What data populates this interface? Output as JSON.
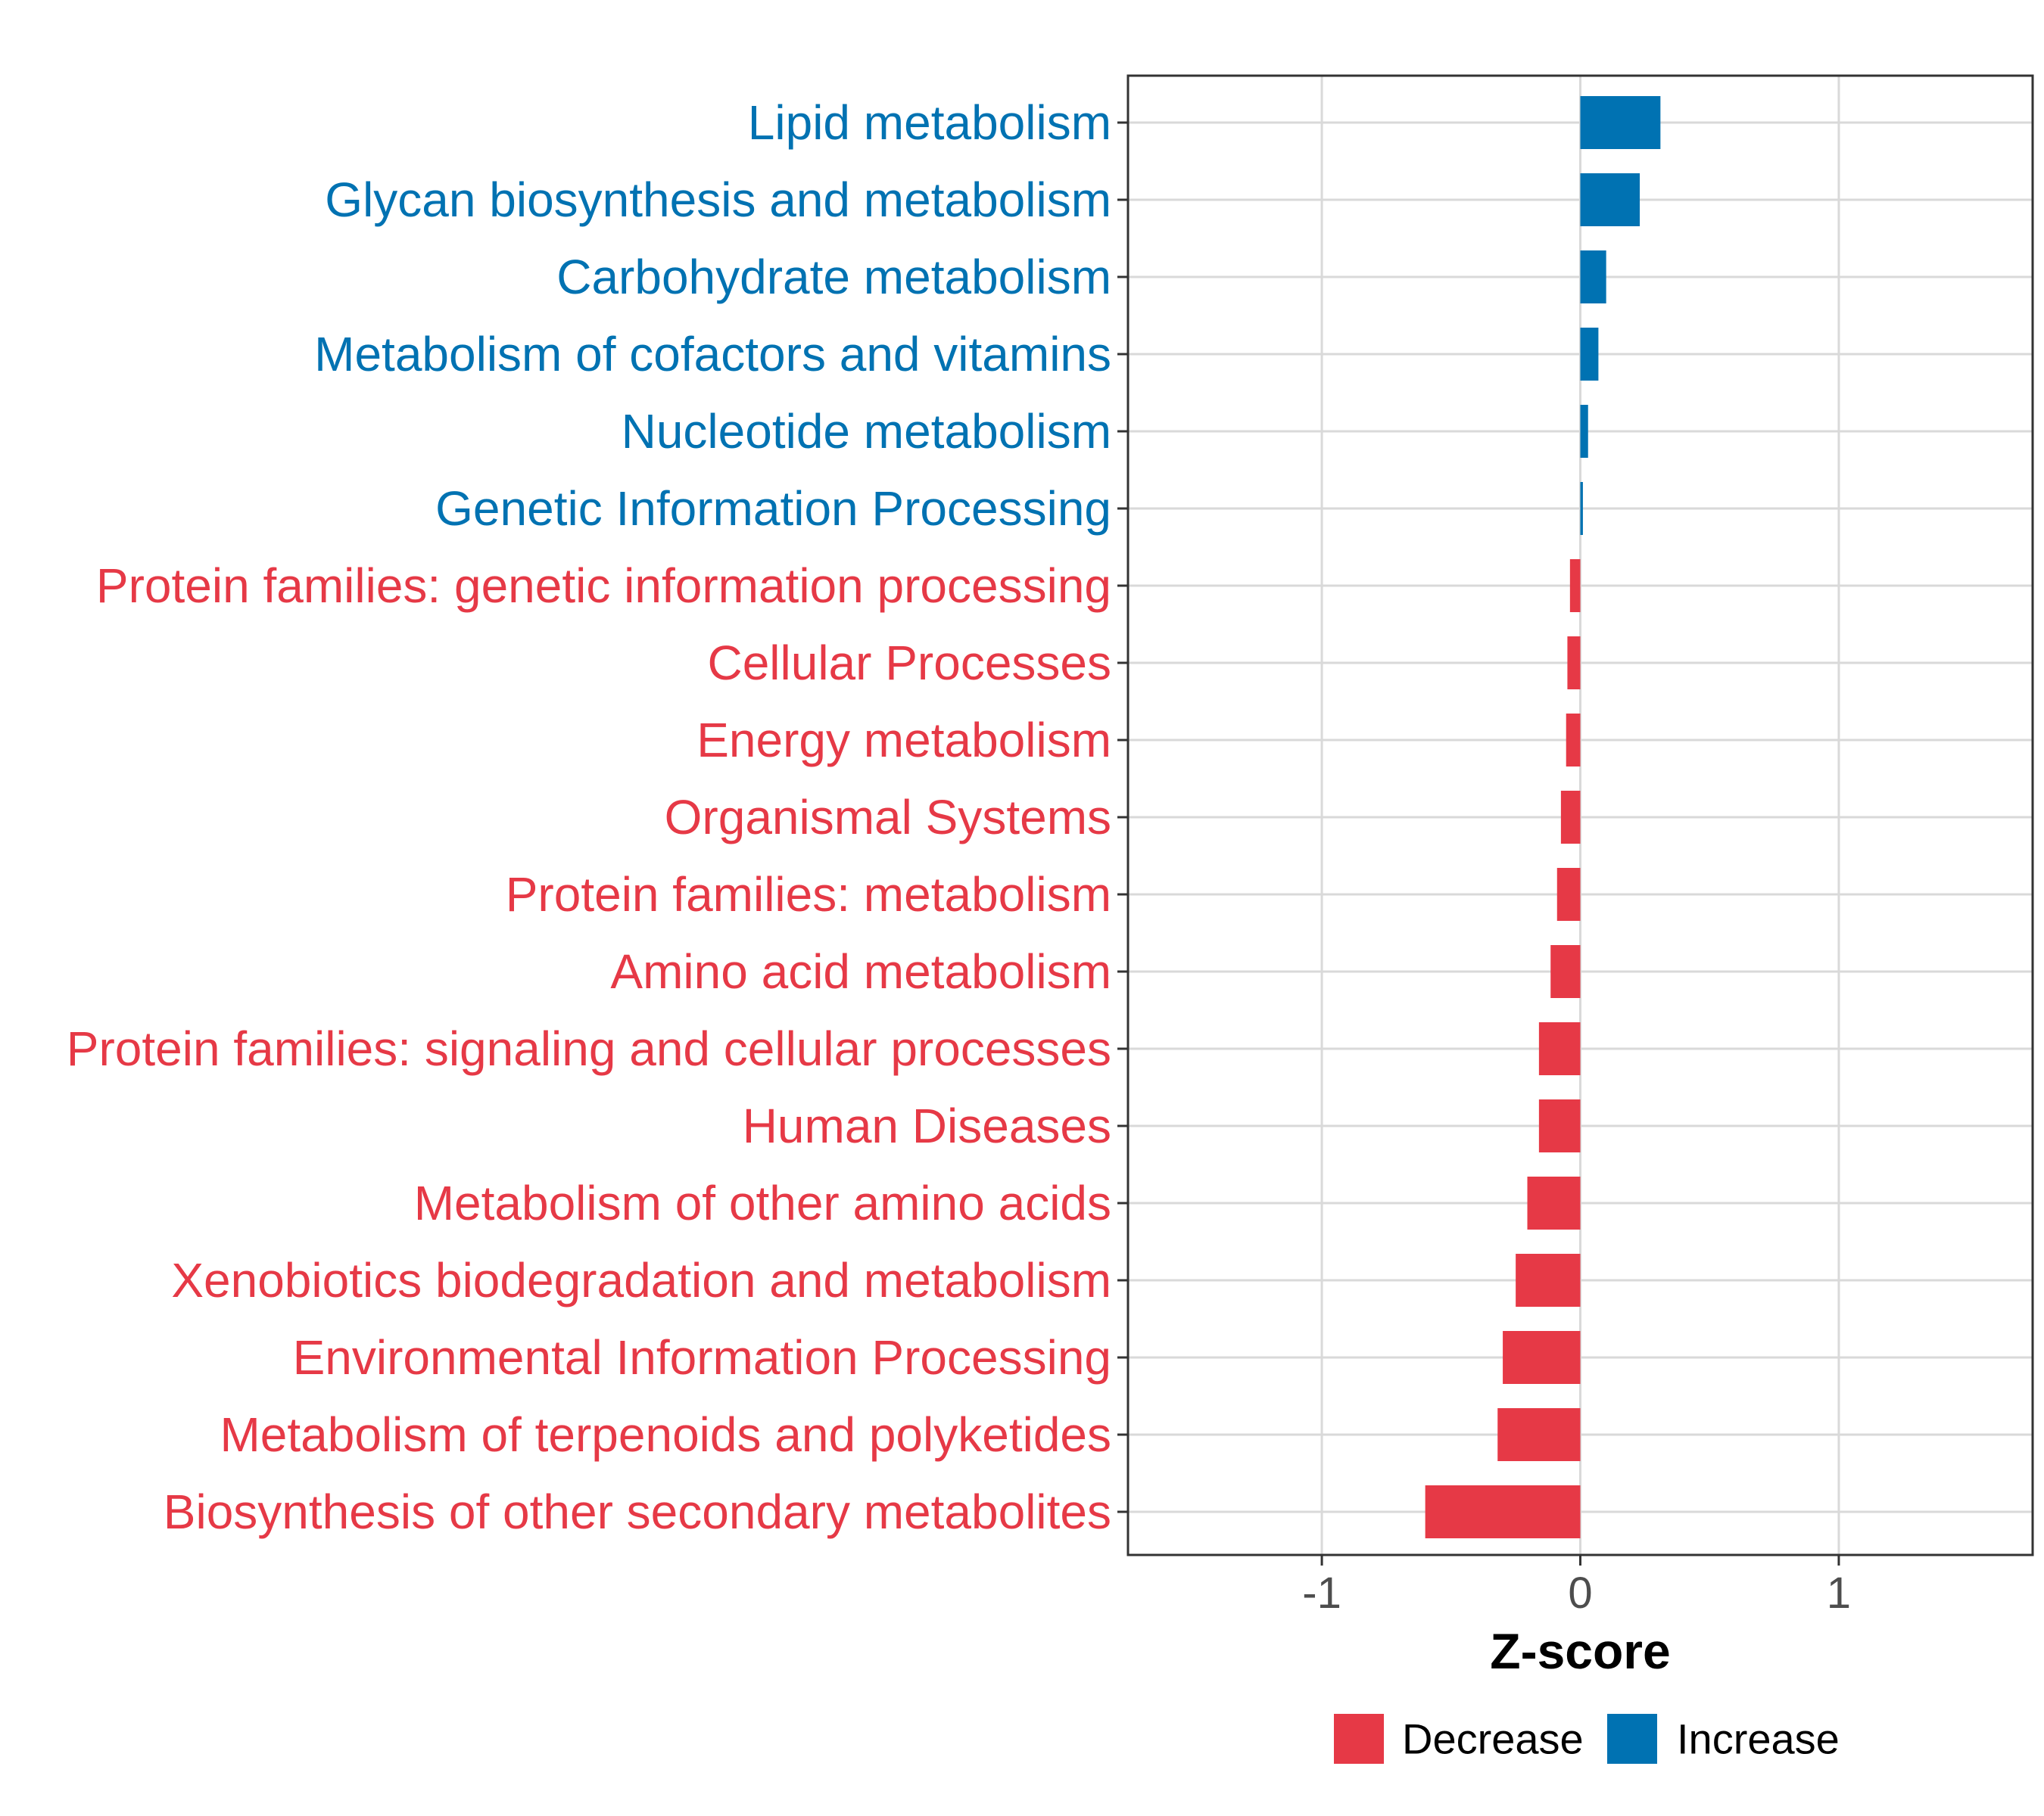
{
  "chart_data": {
    "type": "bar",
    "orientation": "horizontal",
    "title": "",
    "xlabel": "Z-score",
    "ylabel": "",
    "xlim": [
      -1.75,
      1.75
    ],
    "x_ticks": [
      -1,
      0,
      1
    ],
    "x_tick_labels": [
      "-1",
      "0",
      "1"
    ],
    "grid": true,
    "categories": [
      "Lipid metabolism",
      "Glycan biosynthesis and metabolism",
      "Carbohydrate metabolism",
      "Metabolism of cofactors and vitamins",
      "Nucleotide metabolism",
      "Genetic Information Processing",
      "Protein families: genetic information processing",
      "Cellular Processes",
      "Energy metabolism",
      "Organismal Systems",
      "Protein families: metabolism",
      "Amino acid metabolism",
      "Protein families: signaling and cellular processes",
      "Human Diseases",
      "Metabolism of other amino acids",
      "Xenobiotics biodegradation and metabolism",
      "Environmental Information Processing",
      "Metabolism of terpenoids and polyketides",
      "Biosynthesis of other secondary metabolites"
    ],
    "values": [
      0.31,
      0.23,
      0.1,
      0.07,
      0.03,
      0.01,
      -0.04,
      -0.05,
      -0.055,
      -0.075,
      -0.09,
      -0.115,
      -0.16,
      -0.16,
      -0.205,
      -0.25,
      -0.3,
      -0.32,
      -0.6
    ],
    "groups": [
      "Increase",
      "Increase",
      "Increase",
      "Increase",
      "Increase",
      "Increase",
      "Decrease",
      "Decrease",
      "Decrease",
      "Decrease",
      "Decrease",
      "Decrease",
      "Decrease",
      "Decrease",
      "Decrease",
      "Decrease",
      "Decrease",
      "Decrease",
      "Decrease"
    ],
    "legend": {
      "placement": "bottom",
      "entries": [
        {
          "label": "Decrease",
          "color": "#e63946"
        },
        {
          "label": "Increase",
          "color": "#0072b2"
        }
      ]
    },
    "colors": {
      "Decrease": "#e63946",
      "Increase": "#0072b2"
    }
  }
}
